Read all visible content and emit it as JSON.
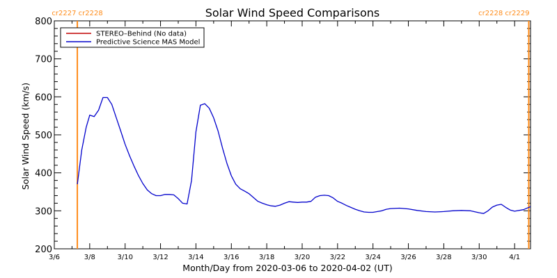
{
  "colors": {
    "background": "#ffffff",
    "axes": "#000000",
    "stereo_line": "#c00000",
    "mas_line": "#0000cc",
    "cr_marker": "#ff8c1a"
  },
  "chart_data": {
    "type": "line",
    "title": "Solar Wind Speed Comparisons",
    "xlabel": "Month/Day from 2020-03-06 to 2020-04-02 (UT)",
    "ylabel": "Solar Wind Speed (km/s)",
    "x_unit": "day of March 2020 (32 = April 1)",
    "xlim": [
      6.0,
      32.9
    ],
    "ylim": [
      200,
      800
    ],
    "grid": false,
    "legend_position": "top-left",
    "x_ticks": [
      {
        "value": 6,
        "label": "3/6"
      },
      {
        "value": 8,
        "label": "3/8"
      },
      {
        "value": 10,
        "label": "3/10"
      },
      {
        "value": 12,
        "label": "3/12"
      },
      {
        "value": 14,
        "label": "3/14"
      },
      {
        "value": 16,
        "label": "3/16"
      },
      {
        "value": 18,
        "label": "3/18"
      },
      {
        "value": 20,
        "label": "3/20"
      },
      {
        "value": 22,
        "label": "3/22"
      },
      {
        "value": 24,
        "label": "3/24"
      },
      {
        "value": 26,
        "label": "3/26"
      },
      {
        "value": 28,
        "label": "3/28"
      },
      {
        "value": 30,
        "label": "3/30"
      },
      {
        "value": 32,
        "label": "4/1"
      }
    ],
    "y_ticks": [
      200,
      300,
      400,
      500,
      600,
      700,
      800
    ],
    "carrington_markers": [
      {
        "x": 7.3,
        "labels": [
          "cr2227",
          "cr2228"
        ]
      },
      {
        "x": 32.8,
        "labels": [
          "cr2228",
          "cr2229"
        ]
      }
    ],
    "series": [
      {
        "name": "STEREO–Behind (No data)",
        "color": "#c00000",
        "x": [],
        "y": []
      },
      {
        "name": "Predictive Science MAS Model",
        "color": "#0000cc",
        "x": [
          7.3,
          7.55,
          7.8,
          8.0,
          8.25,
          8.5,
          8.75,
          9.0,
          9.25,
          9.5,
          9.75,
          10.0,
          10.25,
          10.5,
          10.75,
          11.0,
          11.25,
          11.5,
          11.75,
          12.0,
          12.25,
          12.5,
          12.75,
          13.0,
          13.25,
          13.5,
          13.75,
          14.0,
          14.25,
          14.5,
          14.75,
          15.0,
          15.25,
          15.5,
          15.75,
          16.0,
          16.25,
          16.5,
          16.75,
          17.0,
          17.25,
          17.5,
          17.75,
          18.0,
          18.25,
          18.5,
          18.75,
          19.0,
          19.25,
          19.5,
          19.75,
          20.0,
          20.25,
          20.5,
          20.75,
          21.0,
          21.25,
          21.5,
          21.75,
          22.0,
          22.25,
          22.5,
          22.75,
          23.0,
          23.25,
          23.5,
          23.75,
          24.0,
          24.25,
          24.5,
          24.75,
          25.0,
          25.5,
          26.0,
          26.5,
          27.0,
          27.5,
          28.0,
          28.5,
          29.0,
          29.5,
          30.0,
          30.25,
          30.5,
          30.75,
          31.0,
          31.25,
          31.5,
          31.75,
          32.0,
          32.5,
          32.9
        ],
        "y": [
          370,
          460,
          520,
          552,
          548,
          565,
          598,
          598,
          580,
          545,
          510,
          475,
          445,
          418,
          393,
          372,
          355,
          345,
          340,
          340,
          343,
          343,
          342,
          332,
          320,
          318,
          380,
          508,
          578,
          582,
          570,
          545,
          510,
          465,
          425,
          392,
          370,
          358,
          352,
          345,
          335,
          325,
          320,
          316,
          313,
          312,
          315,
          320,
          324,
          323,
          322,
          323,
          323,
          325,
          336,
          340,
          341,
          340,
          334,
          325,
          320,
          314,
          309,
          304,
          300,
          297,
          296,
          296,
          298,
          300,
          304,
          306,
          307,
          305,
          301,
          298,
          297,
          298,
          300,
          301,
          300,
          295,
          293,
          300,
          310,
          315,
          317,
          309,
          302,
          299,
          303,
          311
        ]
      }
    ]
  }
}
